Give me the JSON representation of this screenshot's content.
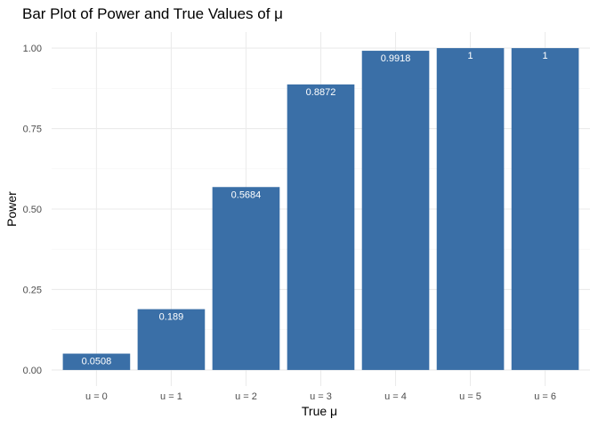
{
  "chart_data": {
    "type": "bar",
    "title": "Bar Plot of Power and True Values of μ",
    "xlabel": "True μ",
    "ylabel": "Power",
    "categories": [
      "u = 0",
      "u = 1",
      "u = 2",
      "u = 3",
      "u = 4",
      "u = 5",
      "u = 6"
    ],
    "values": [
      0.0508,
      0.189,
      0.5684,
      0.8872,
      0.9918,
      1,
      1
    ],
    "value_labels": [
      "0.0508",
      "0.189",
      "0.5684",
      "0.8872",
      "0.9918",
      "1",
      "1"
    ],
    "ylim": [
      0,
      1
    ],
    "yticks": [
      0,
      0.25,
      0.5,
      0.75,
      1
    ],
    "ytick_labels": [
      "0.00",
      "0.25",
      "0.50",
      "0.75",
      "1.00"
    ],
    "grid": true,
    "legend": "none",
    "colors": {
      "bar": "#3a6fa7",
      "bar_label": "#ffffff",
      "grid_major": "#ebebeb",
      "grid_minor": "#f3f3f3"
    }
  }
}
